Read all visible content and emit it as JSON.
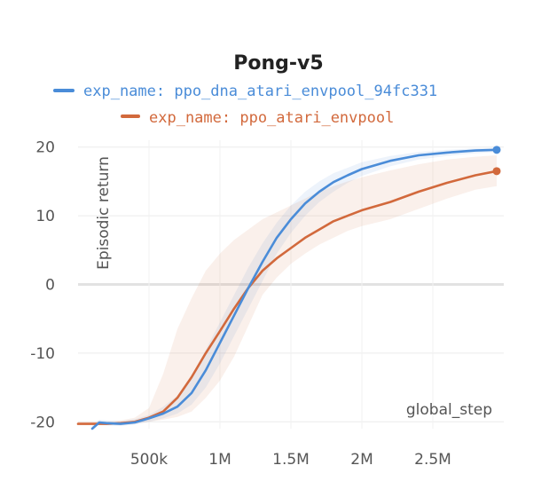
{
  "chart_data": {
    "type": "line",
    "title": "Pong-v5",
    "xlabel": "global_step",
    "ylabel": "Episodic return",
    "xlim": [
      0,
      3000000
    ],
    "ylim": [
      -21,
      21
    ],
    "x_ticks": [
      500000,
      1000000,
      1500000,
      2000000,
      2500000
    ],
    "x_tick_labels": [
      "500k",
      "1M",
      "1.5M",
      "2M",
      "2.5M"
    ],
    "y_ticks": [
      -20,
      -10,
      0,
      10,
      20
    ],
    "y_tick_labels": [
      "-20",
      "-10",
      "0",
      "10",
      "20"
    ],
    "grid": true,
    "legend_position": "top",
    "series": [
      {
        "name": "exp_name: ppo_dna_atari_envpool_94fc331",
        "color": "#4a8cd8",
        "band": true,
        "x": [
          100000,
          150000,
          200000,
          300000,
          400000,
          500000,
          600000,
          700000,
          800000,
          900000,
          1000000,
          1100000,
          1200000,
          1300000,
          1400000,
          1500000,
          1600000,
          1700000,
          1800000,
          1900000,
          2000000,
          2200000,
          2400000,
          2600000,
          2800000,
          2950000
        ],
        "y": [
          -21,
          -20.1,
          -20.2,
          -20.3,
          -20.1,
          -19.5,
          -18.8,
          -17.8,
          -15.8,
          -12.5,
          -8.5,
          -4.5,
          -0.5,
          3.3,
          6.8,
          9.5,
          11.8,
          13.5,
          14.9,
          15.9,
          16.8,
          18.0,
          18.8,
          19.2,
          19.5,
          19.6
        ],
        "lower": [
          -21,
          -20.4,
          -20.5,
          -20.6,
          -20.4,
          -20,
          -19.5,
          -18.8,
          -17.5,
          -15,
          -11.5,
          -7.5,
          -3.5,
          0.5,
          4.5,
          7.5,
          10,
          12,
          13.5,
          14.8,
          15.8,
          17.2,
          18.2,
          18.7,
          19.1,
          19.3
        ],
        "upper": [
          -20.6,
          -19.7,
          -19.8,
          -19.9,
          -19.6,
          -19,
          -17.8,
          -16.2,
          -13.5,
          -9.5,
          -5.5,
          -1.5,
          2.5,
          6,
          9,
          11.5,
          13.5,
          15,
          16.2,
          17,
          17.8,
          18.7,
          19.3,
          19.6,
          19.8,
          19.9
        ]
      },
      {
        "name": "exp_name: ppo_atari_envpool",
        "color": "#d2693c",
        "band": true,
        "x": [
          0,
          100000,
          200000,
          300000,
          400000,
          500000,
          600000,
          700000,
          800000,
          900000,
          1000000,
          1100000,
          1200000,
          1300000,
          1400000,
          1500000,
          1600000,
          1700000,
          1800000,
          1900000,
          2000000,
          2200000,
          2400000,
          2600000,
          2800000,
          2950000
        ],
        "y": [
          -20.3,
          -20.3,
          -20.3,
          -20.2,
          -20,
          -19.4,
          -18.5,
          -16.5,
          -13.5,
          -10,
          -6.8,
          -3.5,
          -0.5,
          2,
          3.8,
          5.3,
          6.8,
          8,
          9.2,
          10,
          10.8,
          12,
          13.5,
          14.8,
          15.9,
          16.5
        ],
        "lower": [
          -20.5,
          -20.5,
          -20.5,
          -20.5,
          -20.3,
          -20,
          -19.7,
          -19.3,
          -18.5,
          -16.5,
          -14,
          -10.5,
          -6,
          -1.5,
          1,
          3,
          4.5,
          5.8,
          6.8,
          7.8,
          8.5,
          9.5,
          11,
          12.5,
          13.8,
          14.3
        ],
        "upper": [
          -20,
          -20,
          -20,
          -19.8,
          -19.4,
          -18,
          -13,
          -6.5,
          -2,
          2,
          4.5,
          6.5,
          8,
          9.5,
          10.5,
          11.5,
          12.5,
          13.5,
          14.3,
          15,
          15.6,
          16.6,
          17.5,
          18.2,
          18.6,
          18.8
        ]
      }
    ]
  }
}
